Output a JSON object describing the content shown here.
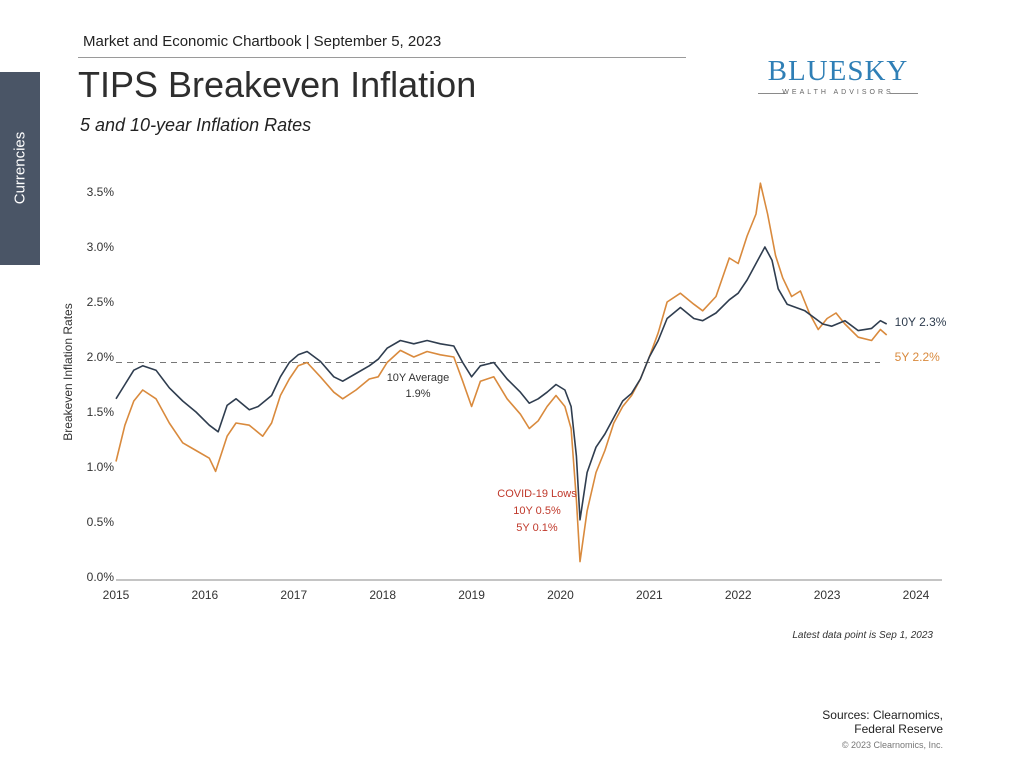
{
  "side_tab": {
    "label": "Currencies"
  },
  "header": {
    "chartbook": "Market and Economic Chartbook | September 5, 2023",
    "title": "TIPS Breakeven Inflation",
    "subtitle": "5 and 10-year Inflation Rates"
  },
  "logo": {
    "main": "BLUESKY",
    "sub": "WEALTH ADVISORS"
  },
  "chart_data": {
    "type": "line",
    "title": "TIPS Breakeven Inflation",
    "ylabel": "Breakeven Inflation Rates",
    "xlabel": "",
    "ylim": [
      0,
      3.6
    ],
    "xlim": [
      2015,
      2024
    ],
    "y_ticks": [
      0.0,
      0.5,
      1.0,
      1.5,
      2.0,
      2.5,
      3.0,
      3.5
    ],
    "y_tick_labels": [
      "0.0%",
      "0.5%",
      "1.0%",
      "1.5%",
      "2.0%",
      "2.5%",
      "3.0%",
      "3.5%"
    ],
    "x_ticks": [
      2015,
      2016,
      2017,
      2018,
      2019,
      2020,
      2021,
      2022,
      2023,
      2024
    ],
    "x_tick_labels": [
      "2015",
      "2016",
      "2017",
      "2018",
      "2019",
      "2020",
      "2021",
      "2022",
      "2023",
      "2024"
    ],
    "series": [
      {
        "name": "10Y",
        "color": "#2f3d4f",
        "end_label": "10Y 2.3%",
        "points": [
          [
            2015.0,
            1.62
          ],
          [
            2015.1,
            1.75
          ],
          [
            2015.2,
            1.88
          ],
          [
            2015.3,
            1.92
          ],
          [
            2015.45,
            1.88
          ],
          [
            2015.6,
            1.72
          ],
          [
            2015.75,
            1.6
          ],
          [
            2015.9,
            1.5
          ],
          [
            2016.05,
            1.38
          ],
          [
            2016.15,
            1.32
          ],
          [
            2016.25,
            1.56
          ],
          [
            2016.35,
            1.62
          ],
          [
            2016.5,
            1.52
          ],
          [
            2016.6,
            1.55
          ],
          [
            2016.75,
            1.65
          ],
          [
            2016.85,
            1.82
          ],
          [
            2016.95,
            1.95
          ],
          [
            2017.05,
            2.02
          ],
          [
            2017.15,
            2.05
          ],
          [
            2017.3,
            1.96
          ],
          [
            2017.45,
            1.82
          ],
          [
            2017.55,
            1.78
          ],
          [
            2017.7,
            1.85
          ],
          [
            2017.85,
            1.92
          ],
          [
            2017.95,
            1.98
          ],
          [
            2018.05,
            2.08
          ],
          [
            2018.2,
            2.15
          ],
          [
            2018.35,
            2.12
          ],
          [
            2018.5,
            2.15
          ],
          [
            2018.65,
            2.12
          ],
          [
            2018.8,
            2.1
          ],
          [
            2018.9,
            1.95
          ],
          [
            2019.0,
            1.82
          ],
          [
            2019.1,
            1.92
          ],
          [
            2019.25,
            1.95
          ],
          [
            2019.4,
            1.8
          ],
          [
            2019.55,
            1.68
          ],
          [
            2019.65,
            1.58
          ],
          [
            2019.75,
            1.62
          ],
          [
            2019.85,
            1.68
          ],
          [
            2019.95,
            1.75
          ],
          [
            2020.05,
            1.7
          ],
          [
            2020.12,
            1.55
          ],
          [
            2020.18,
            1.1
          ],
          [
            2020.22,
            0.52
          ],
          [
            2020.3,
            0.95
          ],
          [
            2020.4,
            1.18
          ],
          [
            2020.5,
            1.3
          ],
          [
            2020.6,
            1.45
          ],
          [
            2020.7,
            1.6
          ],
          [
            2020.8,
            1.67
          ],
          [
            2020.9,
            1.8
          ],
          [
            2021.0,
            2.0
          ],
          [
            2021.1,
            2.15
          ],
          [
            2021.2,
            2.35
          ],
          [
            2021.35,
            2.45
          ],
          [
            2021.5,
            2.35
          ],
          [
            2021.6,
            2.33
          ],
          [
            2021.75,
            2.4
          ],
          [
            2021.9,
            2.52
          ],
          [
            2022.0,
            2.58
          ],
          [
            2022.1,
            2.7
          ],
          [
            2022.2,
            2.85
          ],
          [
            2022.3,
            3.0
          ],
          [
            2022.38,
            2.88
          ],
          [
            2022.45,
            2.62
          ],
          [
            2022.55,
            2.48
          ],
          [
            2022.65,
            2.45
          ],
          [
            2022.75,
            2.42
          ],
          [
            2022.85,
            2.36
          ],
          [
            2022.95,
            2.3
          ],
          [
            2023.05,
            2.28
          ],
          [
            2023.2,
            2.33
          ],
          [
            2023.35,
            2.24
          ],
          [
            2023.5,
            2.26
          ],
          [
            2023.6,
            2.33
          ],
          [
            2023.67,
            2.3
          ]
        ]
      },
      {
        "name": "5Y",
        "color": "#d98a3d",
        "end_label": "5Y 2.2%",
        "points": [
          [
            2015.0,
            1.05
          ],
          [
            2015.1,
            1.38
          ],
          [
            2015.2,
            1.6
          ],
          [
            2015.3,
            1.7
          ],
          [
            2015.45,
            1.62
          ],
          [
            2015.6,
            1.4
          ],
          [
            2015.75,
            1.22
          ],
          [
            2015.9,
            1.15
          ],
          [
            2016.05,
            1.08
          ],
          [
            2016.12,
            0.96
          ],
          [
            2016.25,
            1.28
          ],
          [
            2016.35,
            1.4
          ],
          [
            2016.5,
            1.38
          ],
          [
            2016.65,
            1.28
          ],
          [
            2016.75,
            1.4
          ],
          [
            2016.85,
            1.65
          ],
          [
            2016.95,
            1.8
          ],
          [
            2017.05,
            1.92
          ],
          [
            2017.15,
            1.95
          ],
          [
            2017.3,
            1.82
          ],
          [
            2017.45,
            1.68
          ],
          [
            2017.55,
            1.62
          ],
          [
            2017.7,
            1.7
          ],
          [
            2017.85,
            1.8
          ],
          [
            2017.95,
            1.82
          ],
          [
            2018.05,
            1.95
          ],
          [
            2018.2,
            2.06
          ],
          [
            2018.35,
            2.0
          ],
          [
            2018.5,
            2.05
          ],
          [
            2018.65,
            2.02
          ],
          [
            2018.8,
            2.0
          ],
          [
            2018.9,
            1.78
          ],
          [
            2019.0,
            1.55
          ],
          [
            2019.1,
            1.78
          ],
          [
            2019.25,
            1.82
          ],
          [
            2019.4,
            1.62
          ],
          [
            2019.55,
            1.48
          ],
          [
            2019.65,
            1.35
          ],
          [
            2019.75,
            1.42
          ],
          [
            2019.85,
            1.55
          ],
          [
            2019.95,
            1.65
          ],
          [
            2020.05,
            1.55
          ],
          [
            2020.12,
            1.35
          ],
          [
            2020.18,
            0.7
          ],
          [
            2020.22,
            0.14
          ],
          [
            2020.3,
            0.6
          ],
          [
            2020.4,
            0.95
          ],
          [
            2020.5,
            1.15
          ],
          [
            2020.6,
            1.4
          ],
          [
            2020.7,
            1.55
          ],
          [
            2020.8,
            1.65
          ],
          [
            2020.9,
            1.8
          ],
          [
            2021.0,
            2.0
          ],
          [
            2021.1,
            2.22
          ],
          [
            2021.2,
            2.5
          ],
          [
            2021.35,
            2.58
          ],
          [
            2021.5,
            2.48
          ],
          [
            2021.6,
            2.42
          ],
          [
            2021.75,
            2.55
          ],
          [
            2021.9,
            2.9
          ],
          [
            2022.0,
            2.85
          ],
          [
            2022.1,
            3.1
          ],
          [
            2022.2,
            3.3
          ],
          [
            2022.25,
            3.58
          ],
          [
            2022.33,
            3.3
          ],
          [
            2022.42,
            2.92
          ],
          [
            2022.5,
            2.72
          ],
          [
            2022.6,
            2.55
          ],
          [
            2022.7,
            2.6
          ],
          [
            2022.8,
            2.4
          ],
          [
            2022.9,
            2.25
          ],
          [
            2023.0,
            2.35
          ],
          [
            2023.1,
            2.4
          ],
          [
            2023.2,
            2.3
          ],
          [
            2023.35,
            2.18
          ],
          [
            2023.5,
            2.15
          ],
          [
            2023.6,
            2.25
          ],
          [
            2023.67,
            2.2
          ]
        ]
      }
    ],
    "reference_line": {
      "value": 1.95,
      "label_line1": "10Y Average",
      "label_line2": "1.9%"
    },
    "annotations": {
      "covid_line1": "COVID-19 Lows",
      "covid_line2": "10Y 0.5%",
      "covid_line3": "5Y 0.1%"
    },
    "grid": false,
    "legend": "none"
  },
  "footer": {
    "latest": "Latest data point is Sep 1, 2023",
    "sources_line1": "Sources: Clearnomics,",
    "sources_line2": "Federal Reserve",
    "copyright": "© 2023 Clearnomics, Inc."
  },
  "colors": {
    "ten_year": "#2f3d4f",
    "five_year": "#d98a3d",
    "covid_annotation": "#c0392b",
    "side_tab": "#4a5566",
    "logo_blue": "#2f7fb6"
  }
}
